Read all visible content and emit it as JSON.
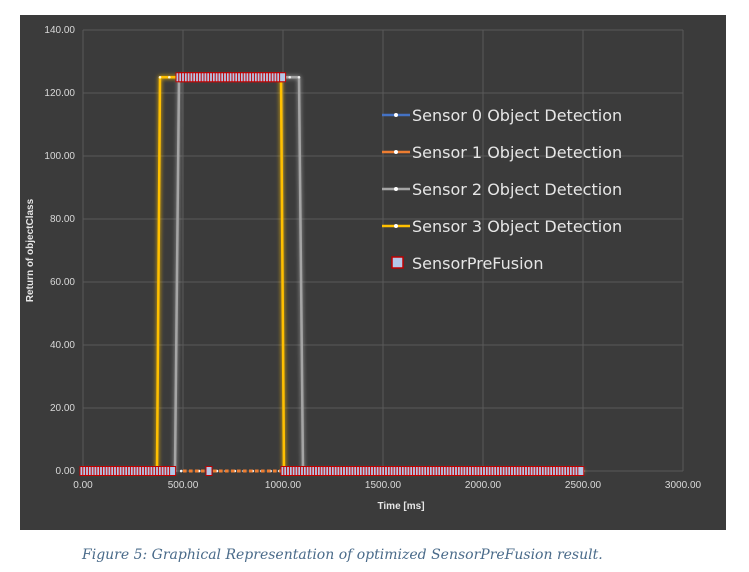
{
  "chart_data": {
    "type": "line",
    "title": "",
    "xlabel": "Time [ms]",
    "ylabel": "Return of objectClass",
    "xlim": [
      0,
      3000
    ],
    "ylim": [
      0,
      140
    ],
    "x_ticks": [
      "0.00",
      "500.00",
      "1000.00",
      "1500.00",
      "2000.00",
      "2500.00",
      "3000.00"
    ],
    "y_ticks": [
      "0.00",
      "20.00",
      "40.00",
      "60.00",
      "80.00",
      "100.00",
      "120.00",
      "140.00"
    ],
    "grid": true,
    "legend_position": "right",
    "series": [
      {
        "name": "Sensor 0 Object Detection",
        "color": "#4472c4",
        "marker": "dot",
        "points": [
          [
            0,
            0
          ],
          [
            2500,
            0
          ]
        ]
      },
      {
        "name": "Sensor 1 Object Detection",
        "color": "#ed7d31",
        "marker": "dot",
        "points": [
          [
            0,
            0
          ],
          [
            2500,
            0
          ]
        ]
      },
      {
        "name": "Sensor 2 Object Detection",
        "color": "#a5a5a5",
        "marker": "dot",
        "points": [
          [
            0,
            0
          ],
          [
            460,
            0
          ],
          [
            480,
            125
          ],
          [
            1080,
            125
          ],
          [
            1100,
            0
          ],
          [
            2500,
            0
          ]
        ]
      },
      {
        "name": "Sensor 3 Object Detection",
        "color": "#ffc000",
        "marker": "dot",
        "points": [
          [
            0,
            0
          ],
          [
            370,
            0
          ],
          [
            385,
            125
          ],
          [
            990,
            125
          ],
          [
            1005,
            0
          ],
          [
            2500,
            0
          ]
        ]
      },
      {
        "name": "SensorPreFusion",
        "color": "#b4c7e7",
        "edge_color": "#c00000",
        "marker": "square",
        "points": [
          [
            0,
            0
          ],
          [
            460,
            0
          ],
          [
            480,
            125
          ],
          [
            1000,
            125
          ],
          [
            1005,
            0
          ],
          [
            2500,
            0
          ]
        ]
      }
    ]
  },
  "caption": "Figure 5: Graphical Representation of optimized SensorPreFusion result."
}
